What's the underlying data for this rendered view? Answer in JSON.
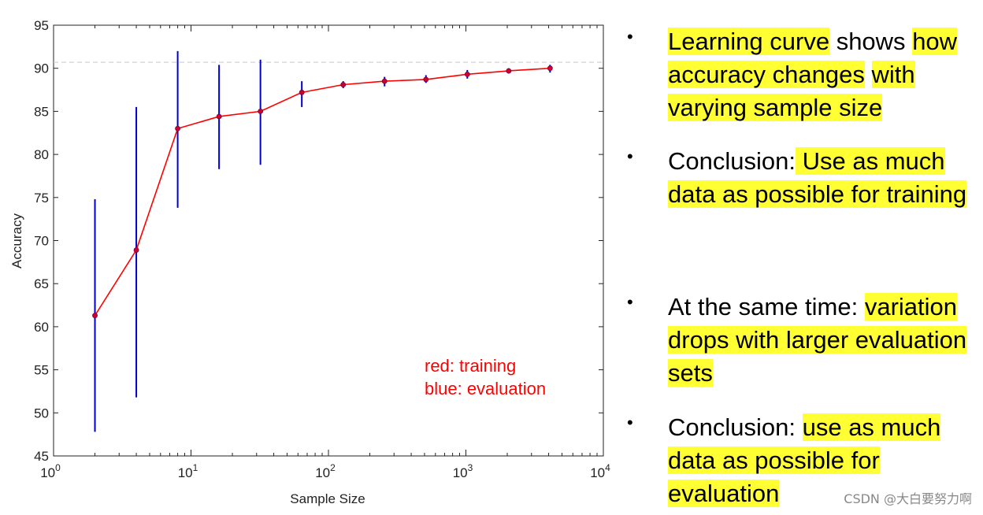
{
  "chart_data": {
    "type": "line",
    "title": "",
    "xlabel": "Sample Size",
    "ylabel": "Accuracy",
    "xscale": "log",
    "xlim": [
      1,
      10000
    ],
    "ylim": [
      45,
      95
    ],
    "yticks": [
      45,
      50,
      55,
      60,
      65,
      70,
      75,
      80,
      85,
      90,
      95
    ],
    "xticks": [
      {
        "value": 1,
        "base": "10",
        "exp": "0"
      },
      {
        "value": 10,
        "base": "10",
        "exp": "1"
      },
      {
        "value": 100,
        "base": "10",
        "exp": "2"
      },
      {
        "value": 1000,
        "base": "10",
        "exp": "3"
      },
      {
        "value": 10000,
        "base": "10",
        "exp": "4"
      }
    ],
    "reference_line_y": 90.7,
    "grid": false,
    "series": [
      {
        "color": "#ff0000",
        "x": [
          2,
          4,
          8,
          16,
          32,
          64,
          128,
          256,
          512,
          1024,
          2048,
          4096
        ],
        "y": [
          61.3,
          68.9,
          83.0,
          84.4,
          85.0,
          87.2,
          88.1,
          88.5,
          88.7,
          89.3,
          89.7,
          90.0
        ]
      }
    ],
    "error_bars": {
      "color": "#0000cc",
      "x": [
        2,
        4,
        8,
        16,
        32,
        64,
        128,
        256,
        512,
        1024,
        2048,
        4096
      ],
      "low": [
        47.8,
        51.8,
        73.8,
        78.3,
        78.8,
        85.5,
        87.7,
        87.9,
        88.3,
        88.8,
        89.4,
        89.5
      ],
      "high": [
        74.8,
        85.5,
        92.0,
        90.4,
        91.0,
        88.5,
        88.5,
        89.0,
        89.2,
        89.8,
        90.0,
        90.4
      ]
    },
    "annotations": [
      {
        "text": "red: training",
        "color": "#ff0000"
      },
      {
        "text": "blue: evaluation",
        "color": "#ff0000"
      }
    ]
  },
  "bullets": [
    {
      "segments": [
        {
          "text": "Learning curve",
          "highlight": true
        },
        {
          "text": " shows ",
          "highlight": false
        },
        {
          "text": "how accuracy changes",
          "highlight": true
        },
        {
          "text": " ",
          "highlight": false
        },
        {
          "text": "with varying sample size",
          "highlight": true
        }
      ]
    },
    {
      "segments": [
        {
          "text": "Conclusion:",
          "highlight": false
        },
        {
          "text": " Use as ",
          "highlight": true
        },
        {
          "text": "much data as possible ",
          "highlight": true
        },
        {
          "text": "for training",
          "highlight": true
        }
      ]
    },
    {
      "segments": [
        {
          "text": "At the same time: ",
          "highlight": false
        },
        {
          "text": "variation drops with ",
          "highlight": true
        },
        {
          "text": "larger evaluation sets",
          "highlight": true
        }
      ]
    },
    {
      "segments": [
        {
          "text": "Conclusion: ",
          "highlight": false
        },
        {
          "text": "use as ",
          "highlight": true
        },
        {
          "text": "much data as possible ",
          "highlight": true
        },
        {
          "text": "for evaluation",
          "highlight": true
        }
      ]
    }
  ],
  "bullet_symbol": "•",
  "watermark": "CSDN @大白要努力啊"
}
